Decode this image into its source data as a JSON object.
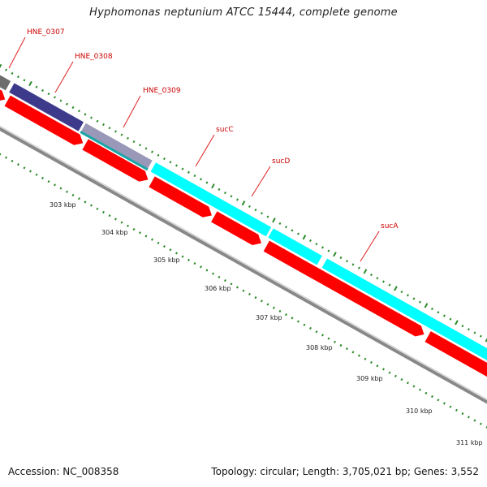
{
  "title": "Hyphomonas neptunium ATCC 15444, complete genome",
  "footer": {
    "accession": "Accession: NC_008358",
    "summary": "Topology: circular; Length: 3,705,021 bp; Genes: 3,552"
  },
  "colors": {
    "cds": "#ff0000",
    "gene": "#00ffff",
    "hypothetical": "#3d3a8c",
    "other": "#6d6d6d",
    "rna": "#9a98b8",
    "tick": "#2a8a2a",
    "label": "#cc0000",
    "backbone": "#888888"
  },
  "scale_labels": [
    "303 kbp",
    "304 kbp",
    "305 kbp",
    "306 kbp",
    "307 kbp",
    "308 kbp",
    "309 kbp",
    "310 kbp",
    "311 kbp"
  ],
  "gene_labels": [
    {
      "text": "HNE_0307"
    },
    {
      "text": "HNE_0308"
    },
    {
      "text": "HNE_0309"
    },
    {
      "text": "sucC"
    },
    {
      "text": "sucD"
    },
    {
      "text": "sucA"
    }
  ]
}
